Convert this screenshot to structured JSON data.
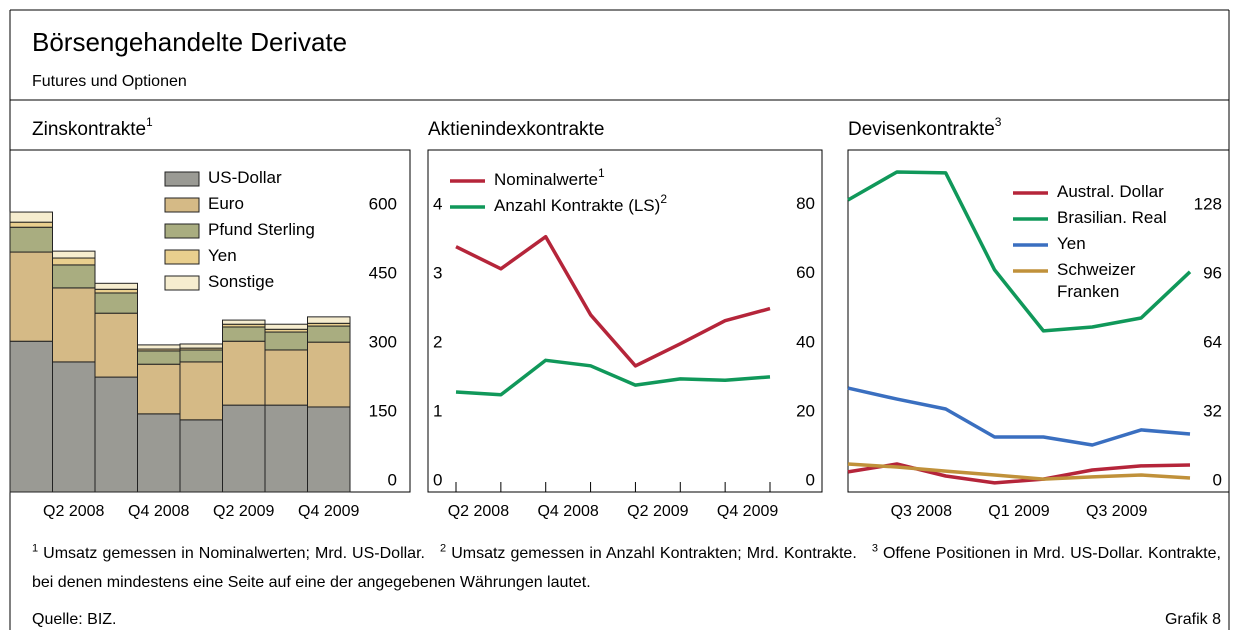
{
  "title": "Börsengehandelte Derivate",
  "subtitle": "Futures und Optionen",
  "chart_data": [
    {
      "type": "stacked_bar",
      "title": "Zinskontrakte",
      "title_note": "1",
      "categories": [
        null,
        "Q2 2008",
        null,
        "Q4 2008",
        null,
        "Q2 2009",
        null,
        "Q4 2009"
      ],
      "series": [
        {
          "name": "US-Dollar",
          "color": "#9a9a94",
          "values": [
            328,
            283,
            250,
            170,
            157,
            189,
            189,
            185
          ]
        },
        {
          "name": "Euro",
          "color": "#d5ba86",
          "values": [
            194,
            161,
            139,
            108,
            126,
            139,
            120,
            141
          ]
        },
        {
          "name": "Pfund Sterling",
          "color": "#a9ad80",
          "values": [
            54,
            50,
            44,
            29,
            26,
            31,
            39,
            35
          ]
        },
        {
          "name": "Yen",
          "color": "#e9cf8e",
          "values": [
            11,
            15,
            8,
            4,
            4,
            6,
            6,
            6
          ]
        },
        {
          "name": "Sonstige",
          "color": "#f6edcf",
          "values": [
            22,
            15,
            13,
            9,
            9,
            9,
            11,
            14
          ]
        }
      ],
      "ylim": [
        0,
        744
      ],
      "yticks": [
        0,
        150,
        300,
        450,
        600
      ],
      "legend": "upper center"
    },
    {
      "type": "line",
      "title": "Aktienindexkontrakte",
      "categories": [
        null,
        "Q2 2008",
        null,
        "Q4 2008",
        null,
        "Q2 2009",
        null,
        "Q4 2009"
      ],
      "series": [
        {
          "name": "Nominalwerte",
          "note": "1",
          "color": "#b5253a",
          "values": [
            71.0,
            64.6,
            73.9,
            51.3,
            36.5,
            42.9,
            49.6,
            53.1
          ]
        },
        {
          "name": "Anzahl Kontrakte (LS)",
          "note": "2",
          "color": "#10985a",
          "axis": "y2",
          "values": [
            1.45,
            1.41,
            1.91,
            1.83,
            1.55,
            1.64,
            1.62,
            1.67
          ]
        }
      ],
      "ylim": [
        0,
        99
      ],
      "yticks": [
        0,
        20,
        40,
        60,
        80
      ],
      "y2lim": [
        0,
        4.96
      ],
      "y2ticks": [
        0,
        1,
        2,
        3,
        4
      ],
      "legend": "upper left"
    },
    {
      "type": "line",
      "title": "Devisenkontrakte",
      "title_note": "3",
      "categories": [
        null,
        null,
        "Q3 2008",
        null,
        "Q1 2009",
        null,
        "Q3 2009",
        null
      ],
      "series": [
        {
          "name": "Austral. Dollar",
          "color": "#b5253a",
          "values": [
            9.3,
            13.0,
            7.4,
            4.2,
            6.0,
            10.2,
            12.1,
            12.5
          ]
        },
        {
          "name": "Brasilian. Real",
          "color": "#10985a",
          "values": [
            135.4,
            148.4,
            148.0,
            103.0,
            74.7,
            76.5,
            80.7,
            102.1
          ]
        },
        {
          "name": "Yen",
          "color": "#3a6fc0",
          "values": [
            48.2,
            43.1,
            38.5,
            25.5,
            25.5,
            21.8,
            28.8,
            26.9
          ]
        },
        {
          "name": "Schweizer Franken",
          "color": "#c0913a",
          "values": [
            13.0,
            11.6,
            9.7,
            7.9,
            6.0,
            7.0,
            7.9,
            6.5
          ]
        }
      ],
      "ylim": [
        0,
        158.6
      ],
      "yticks": [
        0,
        32,
        64,
        96,
        128
      ],
      "legend": "upper right"
    }
  ],
  "footnotes": [
    {
      "mark": "1",
      "text": "Umsatz gemessen in Nominalwerten; Mrd. US-Dollar."
    },
    {
      "mark": "2",
      "text": "Umsatz gemessen in Anzahl Kontrakten; Mrd. Kontrakte."
    },
    {
      "mark": "3",
      "text": "Offene Positionen in Mrd. US-Dollar. Kontrakte, bei denen mindestens eine Seite auf eine der angegebenen Währungen lautet."
    }
  ],
  "source": "Quelle: BIZ.",
  "figure_label": "Grafik 8"
}
